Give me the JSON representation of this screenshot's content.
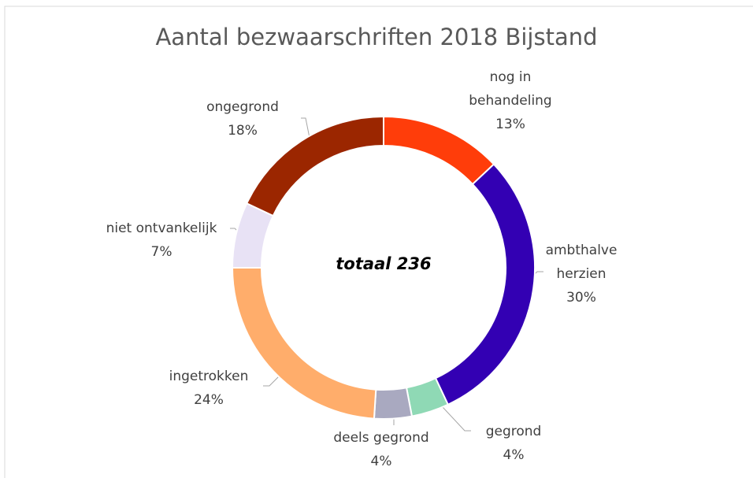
{
  "chart_data": {
    "type": "donut",
    "title": "Aantal bezwaarschriften 2018 Bijstand",
    "annotation": "totaal 236",
    "categories": [
      "nog in behandeling",
      "ambthalve herzien",
      "gegrond",
      "deels gegrond",
      "ingetrokken",
      "niet ontvankelijk",
      "ongegrond"
    ],
    "values": [
      13,
      30,
      4,
      4,
      24,
      7,
      18
    ],
    "value_labels": [
      "13%",
      "30%",
      "4%",
      "4%",
      "24%",
      "7%",
      "18%"
    ],
    "colors": [
      "#ff3d0a",
      "#3300b3",
      "#8fd9b5",
      "#a9a9c0",
      "#ffad6b",
      "#e8e2f5",
      "#9b2600"
    ]
  }
}
